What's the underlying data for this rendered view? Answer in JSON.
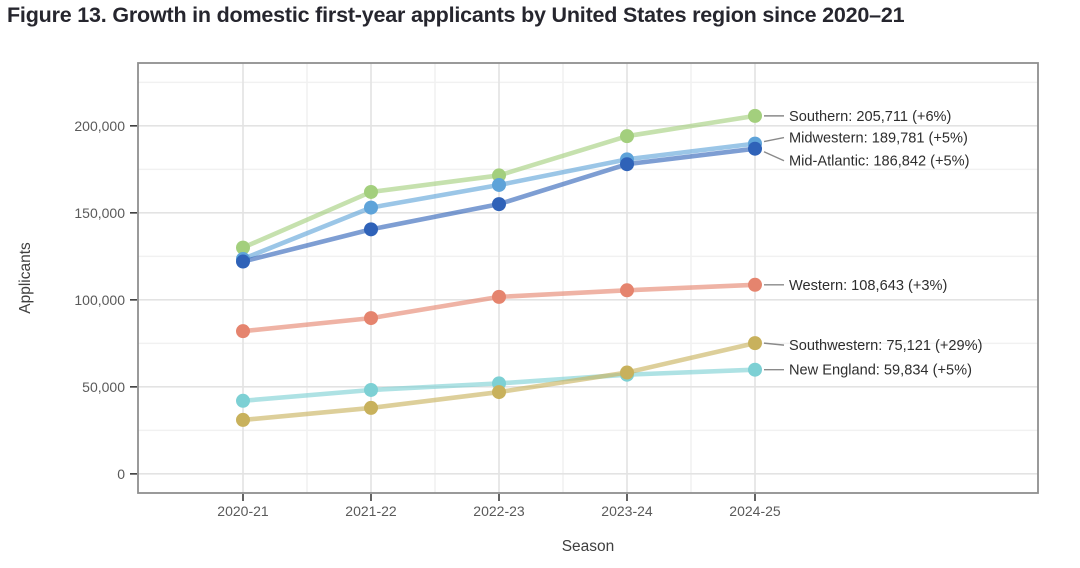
{
  "chart_data": {
    "type": "line",
    "title": "Figure 13. Growth in domestic first-year applicants by United States region since 2020–21",
    "xlabel": "Season",
    "ylabel": "Applicants",
    "categories": [
      "2020-21",
      "2021-22",
      "2022-23",
      "2023-24",
      "2024-25"
    ],
    "yticks": [
      0,
      50000,
      100000,
      150000,
      200000
    ],
    "ytick_labels": [
      "0",
      "50,000",
      "100,000",
      "150,000",
      "200,000"
    ],
    "y_minor_gridlines": [
      25000,
      75000,
      125000,
      175000,
      225000
    ],
    "ylim": [
      -11000,
      236100
    ],
    "grid": "major and minor horizontal + vertical light-gray gridlines, white panel with gray border",
    "legend_position": "labels at right end of lines",
    "series": [
      {
        "name": "Southern",
        "color": "#a3cf7d",
        "end_label": "Southern: 205,711 (+6%)",
        "values": [
          130000,
          162000,
          171500,
          194068,
          205711
        ]
      },
      {
        "name": "Midwestern",
        "color": "#5ea3d9",
        "end_label": "Midwestern: 189,781 (+5%)",
        "values": [
          123500,
          153000,
          166000,
          180745,
          189781
        ]
      },
      {
        "name": "Mid-Atlantic",
        "color": "#2f62b8",
        "end_label": "Mid-Atlantic: 186,842 (+5%)",
        "values": [
          122000,
          140500,
          155000,
          177945,
          186842
        ]
      },
      {
        "name": "Western",
        "color": "#e5846e",
        "end_label": "Western: 108,643 (+3%)",
        "values": [
          82000,
          89500,
          101700,
          105479,
          108643
        ]
      },
      {
        "name": "Southwestern",
        "color": "#c8b15c",
        "end_label": "Southwestern: 75,121 (+29%)",
        "values": [
          31000,
          37900,
          47000,
          58233,
          75121
        ]
      },
      {
        "name": "New England",
        "color": "#7dd0d4",
        "end_label": "New England: 59,834 (+5%)",
        "values": [
          42000,
          48200,
          52000,
          56985,
          59834
        ]
      }
    ]
  }
}
